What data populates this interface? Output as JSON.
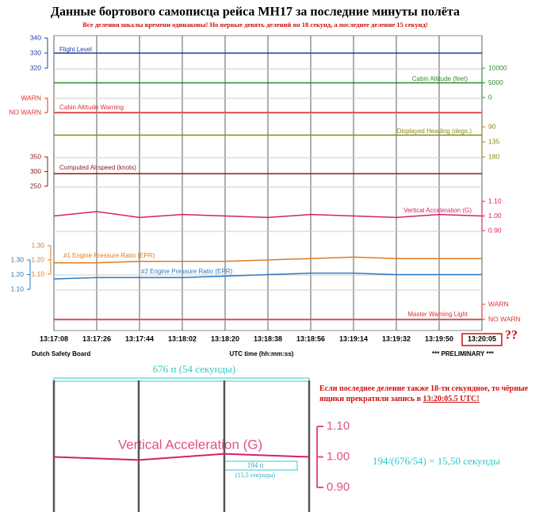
{
  "chart_data": {
    "type": "line",
    "title": "Данные бортового самописца рейса МН17 за последние минуты полёта",
    "subtitle": "Все деления шкалы времени одинаковы! Но первые девять делений по 18 секунд, а последнее деление 15 секунд!",
    "categories": [
      "13:17:08",
      "13:17:26",
      "13:17:44",
      "13:18:02",
      "13:18:20",
      "13:18:38",
      "13:18:56",
      "13:19:14",
      "13:19:32",
      "13:19:50",
      "13:20:05"
    ],
    "xlabel": "UTC time (hh:mm:ss)",
    "source": "Dutch Safety Board",
    "status": "*** PRELIMINARY ***",
    "question": "??",
    "panels": [
      {
        "name": "Flight Level",
        "color": "#1f3f9f",
        "ylim": [
          320,
          340
        ],
        "yticks": [
          320,
          330,
          340
        ],
        "values": [
          330,
          330,
          330,
          330,
          330,
          330,
          330,
          330,
          330,
          330,
          330
        ]
      },
      {
        "name": "Cabin Altitude (feet)",
        "color": "#2e8b2e",
        "ylim": [
          0,
          10000
        ],
        "yticks": [
          0,
          5000,
          10000
        ],
        "values": [
          5000,
          5000,
          5000,
          5000,
          5000,
          5000,
          5000,
          5000,
          5000,
          5000,
          5000
        ]
      },
      {
        "name": "Cabin Altitude Warning",
        "color": "#e03030",
        "ylim": [
          0,
          1
        ],
        "yticks": [
          {
            "value": 0,
            "label": "NO WARN"
          },
          {
            "value": 1,
            "label": "WARN"
          }
        ],
        "values": [
          0,
          0,
          0,
          0,
          0,
          0,
          0,
          0,
          0,
          0,
          0
        ]
      },
      {
        "name": "Displayed Heading (degs.)",
        "color": "#8a8a10",
        "ylim": [
          180,
          90
        ],
        "yticks": [
          90,
          135,
          180
        ],
        "values": [
          115,
          115,
          115,
          115,
          115,
          115,
          115,
          115,
          115,
          115,
          115
        ]
      },
      {
        "name": "Computed Airspeed (knots)",
        "color": "#8b1a1a",
        "ylim": [
          250,
          350
        ],
        "yticks": [
          250,
          300,
          350
        ],
        "values": [
          293,
          293,
          293,
          293,
          293,
          293,
          293,
          293,
          293,
          293,
          293
        ]
      },
      {
        "name": "Vertical Acceleration (G)",
        "color": "#d6206a",
        "ylim": [
          0.9,
          1.1
        ],
        "yticks": [
          {
            "value": 0.9,
            "label": "0.90"
          },
          {
            "value": 1.0,
            "label": "1.00"
          },
          {
            "value": 1.1,
            "label": "1.10"
          }
        ],
        "values": [
          1.0,
          1.03,
          0.99,
          1.01,
          1.0,
          0.99,
          1.01,
          1.0,
          0.99,
          1.01,
          1.0
        ]
      },
      {
        "name": "#1 Engine Pressure Ratio (EPR)",
        "color": "#e07a20",
        "ylim": [
          1.1,
          1.3
        ],
        "yticks": [
          {
            "value": 1.1,
            "label": "1.10"
          },
          {
            "value": 1.2,
            "label": "1.20"
          },
          {
            "value": 1.3,
            "label": "1.30"
          }
        ],
        "values": [
          1.18,
          1.18,
          1.19,
          1.19,
          1.19,
          1.2,
          1.21,
          1.22,
          1.21,
          1.21,
          1.21
        ]
      },
      {
        "name": "#2 Engine Pressure Ratio (EPR)",
        "color": "#2a7ac0",
        "ylim": [
          1.1,
          1.3
        ],
        "yticks": [
          {
            "value": 1.1,
            "label": "1.10"
          },
          {
            "value": 1.2,
            "label": "1.20"
          },
          {
            "value": 1.3,
            "label": "1.30"
          }
        ],
        "values": [
          1.17,
          1.18,
          1.18,
          1.18,
          1.19,
          1.2,
          1.21,
          1.21,
          1.2,
          1.2,
          1.2
        ]
      },
      {
        "name": "Master Warning Light",
        "color": "#e03030",
        "ylim": [
          0,
          1
        ],
        "yticks": [
          {
            "value": 0,
            "label": "NO WARN"
          },
          {
            "value": 1,
            "label": "WARN"
          }
        ],
        "values": [
          0,
          0,
          0,
          0,
          0,
          0,
          0,
          0,
          0,
          0,
          0
        ]
      }
    ],
    "zoom": {
      "span_label": "676 п (54 секунды)",
      "segment_label": "194 п",
      "segment_note": "(15,5 секунды)",
      "note": "Если последнее деление также 18-ти секундное, то чёрные ящики прекратили  запись в",
      "note_time": "13:20:05.5 UTC!",
      "formula": "194/(676/54) = 15,50 секунды"
    }
  }
}
